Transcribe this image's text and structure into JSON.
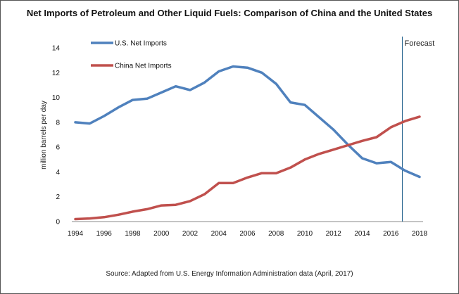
{
  "chart_data": {
    "type": "line",
    "title": "Net Imports of Petroleum and Other Liquid Fuels: Comparison of China and the United States",
    "xlabel": "",
    "ylabel": "million barrels per day",
    "xlim": [
      1994,
      2018
    ],
    "ylim": [
      0,
      14
    ],
    "x_ticks": [
      "1994",
      "1996",
      "1998",
      "2000",
      "2002",
      "2004",
      "2006",
      "2008",
      "2010",
      "2012",
      "2014",
      "2016",
      "2018"
    ],
    "y_ticks": [
      "0",
      "2",
      "4",
      "6",
      "8",
      "10",
      "12",
      "14"
    ],
    "x": [
      1994,
      1995,
      1996,
      1997,
      1998,
      1999,
      2000,
      2001,
      2002,
      2003,
      2004,
      2005,
      2006,
      2007,
      2008,
      2009,
      2010,
      2011,
      2012,
      2013,
      2014,
      2015,
      2016,
      2017,
      2018
    ],
    "series": [
      {
        "name": "U.S. Net Imports",
        "color": "#4f81bd",
        "values": [
          8.0,
          7.9,
          8.5,
          9.2,
          9.8,
          9.9,
          10.4,
          10.9,
          10.6,
          11.2,
          12.1,
          12.5,
          12.4,
          12.0,
          11.1,
          9.6,
          9.4,
          8.4,
          7.4,
          6.2,
          5.1,
          4.7,
          4.8,
          4.1,
          3.6
        ]
      },
      {
        "name": "China Net Imports",
        "color": "#c0504d",
        "values": [
          0.2,
          0.25,
          0.35,
          0.55,
          0.8,
          1.0,
          1.3,
          1.35,
          1.65,
          2.2,
          3.1,
          3.1,
          3.55,
          3.9,
          3.9,
          4.35,
          5.0,
          5.45,
          5.8,
          6.15,
          6.5,
          6.8,
          7.6,
          8.1,
          8.45
        ]
      }
    ],
    "forecast_line": {
      "x": 2016.8,
      "label": "Forecast",
      "color": "#1f5f8b"
    },
    "legend_position": "top-left",
    "grid": false
  },
  "source_text": "Source: Adapted from U.S. Energy Information Administration data (April, 2017)"
}
